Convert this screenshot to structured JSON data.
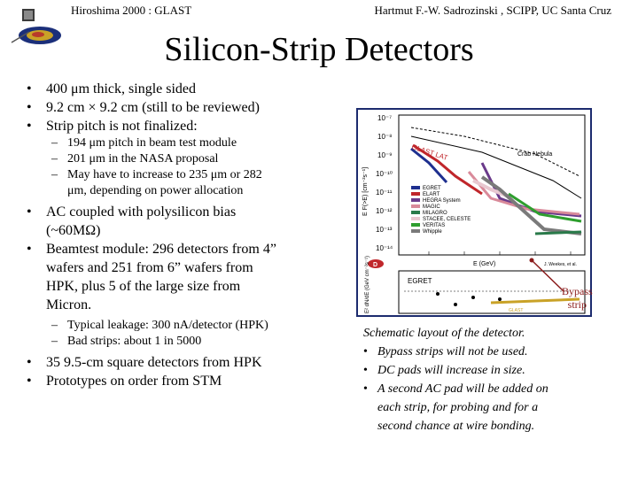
{
  "header": {
    "left": "Hiroshima 2000 : GLAST",
    "right": "Hartmut F.-W. Sadrozinski , SCIPP, UC Santa Cruz"
  },
  "title": "Silicon-Strip Detectors",
  "bullets": {
    "b1": "400 μm thick, single sided",
    "b2": "9.2 cm × 9.2 cm (still to be reviewed)",
    "b3": "Strip pitch is not finalized:",
    "b3_sub1": "194 μm pitch in beam test module",
    "b3_sub2": "201 μm in the NASA proposal",
    "b3_sub3": "May have to increase to 235 μm or 282",
    "b3_sub3_cont": "μm, depending on power allocation",
    "b4": "AC coupled with polysilicon bias",
    "b4_cont": "(~60MΩ)",
    "b5": "Beamtest module: 296 detectors from 4”",
    "b5_l2": "wafers and 251 from 6” wafers from",
    "b5_l3": "HPK, plus 5 of the large size from",
    "b5_l4": "Micron.",
    "b5_sub1": "Typical leakage: 300 nA/detector (HPK)",
    "b5_sub2": "Bad strips: about 1 in 5000",
    "b6": "35 9.5-cm square detectors from HPK",
    "b7": "Prototypes on order from STM"
  },
  "figure": {
    "bypass_l1": "Bypass",
    "bypass_l2": "strip",
    "plot_ylabel": "E F(>E) [cm⁻²s⁻¹]",
    "plot_xlabel": "E (GeV)",
    "lower_ylabel": "E² dN/dE (GeV cm⁻²s⁻¹)",
    "ticks": [
      "10⁻⁷",
      "10⁻⁸",
      "10⁻⁹",
      "10⁻¹⁰",
      "10⁻¹¹",
      "10⁻¹²",
      "10⁻¹³",
      "10⁻¹⁴"
    ],
    "glast_label": "GLAST LAT",
    "crab_label": "Crab Nebula",
    "panel_d": "D",
    "credit": "J. Weekes, et al.",
    "legend": [
      "EGRET",
      "ELART",
      "HEGRA System",
      "MAGIC",
      "MILAGRO",
      "STACEE, CELESTE",
      "VERITAS",
      "Whipple"
    ],
    "lower_label": "EGRET",
    "bottom_label": "GLAST",
    "colors": {
      "frame": "#1c2b6e",
      "egret": "#1e2f8f",
      "elart": "#c0262b",
      "hegra": "#6a3a8a",
      "magic": "#d98a9a",
      "milagro": "#2a7a4a",
      "stacee": "#e8c8d0",
      "veritas": "#2e9e2e",
      "whipple": "#7a7a7a",
      "bypass": "#8a1a1a"
    }
  },
  "caption": {
    "line1": "Schematic layout of the detector.",
    "c1": "Bypass strips will not be used.",
    "c2": "DC pads will increase in size.",
    "c3": "A second AC pad will be added on",
    "c3_l2": "each strip, for probing and for a",
    "c3_l3": "second chance at wire bonding."
  }
}
